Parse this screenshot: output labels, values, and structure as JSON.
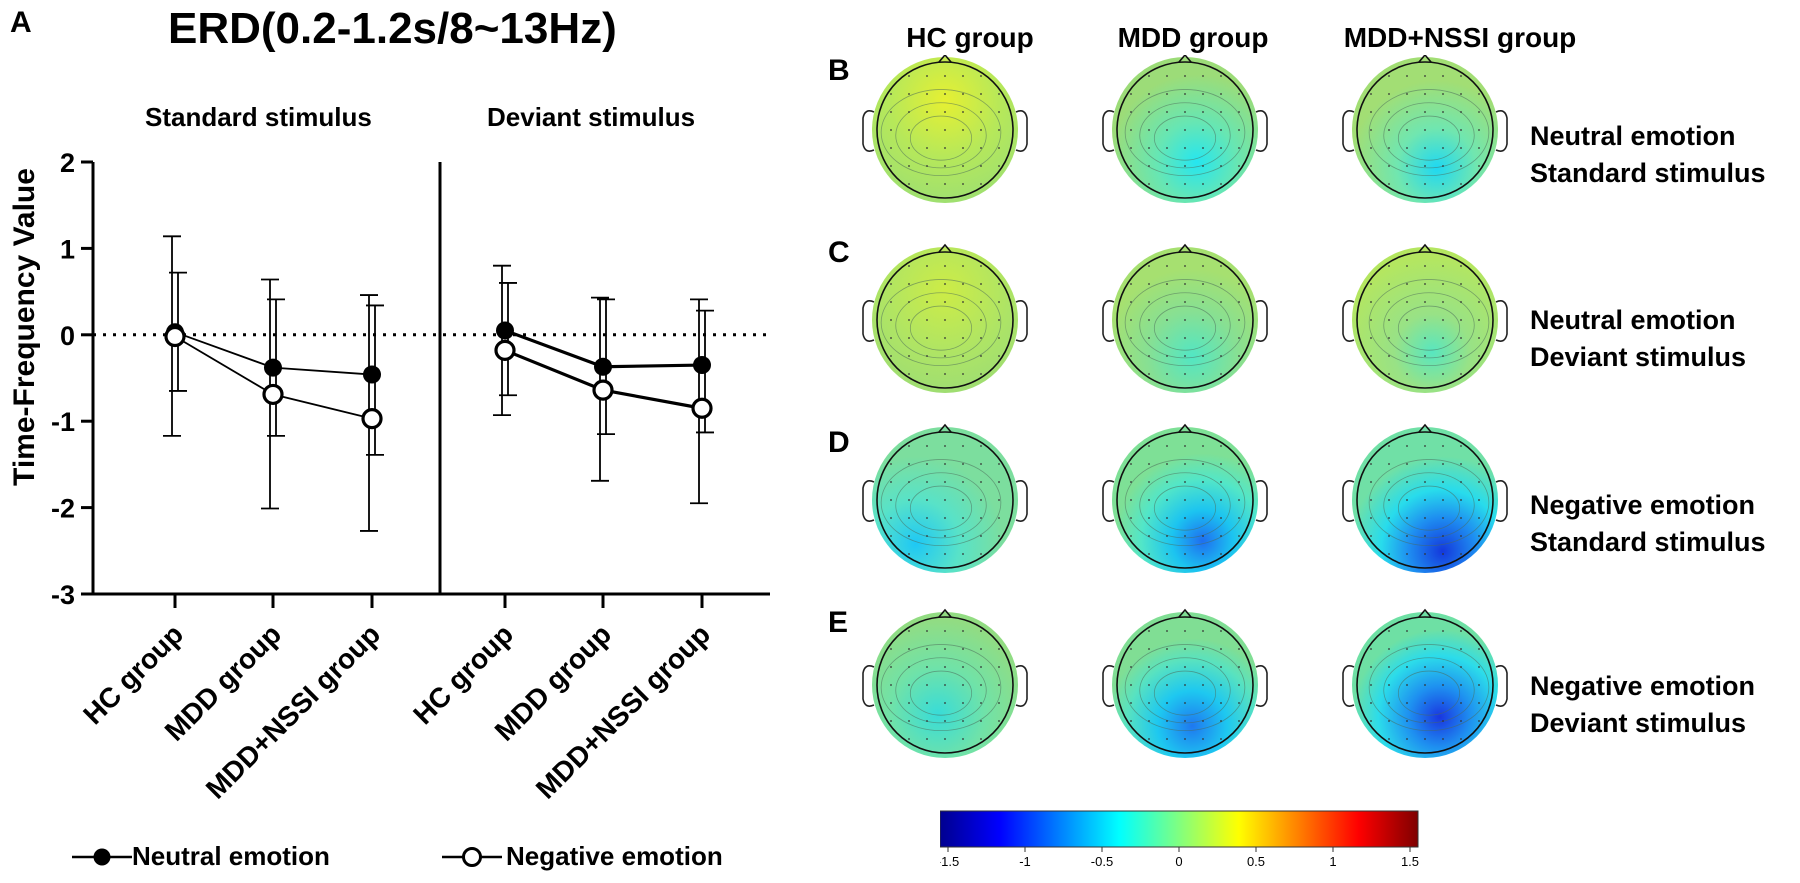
{
  "panel_labels": {
    "a": "A",
    "b": "B",
    "c": "C",
    "d": "D",
    "e": "E"
  },
  "colors": {
    "line": "#000000",
    "head_fill": "#8ad66e",
    "colormap": [
      "#00008f",
      "#0000ff",
      "#00c8ff",
      "#00ffff",
      "#aaff55",
      "#ffff00",
      "#ff7f00",
      "#ff0000",
      "#7f0000"
    ]
  },
  "chart_data": {
    "type": "line",
    "title": "ERD(0.2-1.2s/8~13Hz)",
    "ylabel": "Time-Frequency Value",
    "xlabel": "",
    "ylim": [
      -3,
      2
    ],
    "yticks": [
      "2",
      "1",
      "0",
      "-1",
      "-2",
      "-3"
    ],
    "categories": [
      "HC group",
      "MDD group",
      "MDD+NSSI group"
    ],
    "reference_line": 0,
    "legend_position": "bottom",
    "panels": [
      {
        "subtitle": "Standard stimulus",
        "series": [
          {
            "name": "Neutral emotion",
            "marker": "filled-circle",
            "values": [
              0.03,
              -0.38,
              -0.46
            ],
            "err_low": [
              -0.65,
              -1.17,
              -1.39
            ],
            "err_high": [
              0.72,
              0.41,
              0.34
            ]
          },
          {
            "name": "Negative emotion",
            "marker": "open-circle",
            "values": [
              -0.02,
              -0.69,
              -0.97
            ],
            "err_low": [
              -1.17,
              -2.01,
              -2.27
            ],
            "err_high": [
              1.14,
              0.64,
              0.46
            ]
          }
        ]
      },
      {
        "subtitle": "Deviant stimulus",
        "series": [
          {
            "name": "Neutral emotion",
            "marker": "filled-circle",
            "values": [
              0.05,
              -0.37,
              -0.35
            ],
            "err_low": [
              -0.7,
              -1.15,
              -1.13
            ],
            "err_high": [
              0.6,
              0.41,
              0.28
            ]
          },
          {
            "name": "Negative emotion",
            "marker": "open-circle",
            "values": [
              -0.18,
              -0.64,
              -0.85
            ],
            "err_low": [
              -0.93,
              -1.69,
              -1.95
            ],
            "err_high": [
              0.8,
              0.43,
              0.41
            ]
          }
        ]
      }
    ],
    "legend": [
      "Neutral emotion",
      "Negative emotion"
    ]
  },
  "topomaps": {
    "columns": [
      "HC group",
      "MDD group",
      "MDD+NSSI group"
    ],
    "rows": [
      {
        "letter": "B",
        "line1": "Neutral emotion",
        "line2": "Standard stimulus"
      },
      {
        "letter": "C",
        "line1": "Neutral emotion",
        "line2": "Deviant stimulus"
      },
      {
        "letter": "D",
        "line1": "Negative emotion",
        "line2": "Standard stimulus"
      },
      {
        "letter": "E",
        "line1": "Negative emotion",
        "line2": "Deviant stimulus"
      }
    ],
    "colorbar": {
      "min": -1.5,
      "max": 1.5,
      "ticks": [
        "-1.5",
        "-1",
        "-0.5",
        "0",
        "0.5",
        "1",
        "1.5"
      ]
    }
  }
}
